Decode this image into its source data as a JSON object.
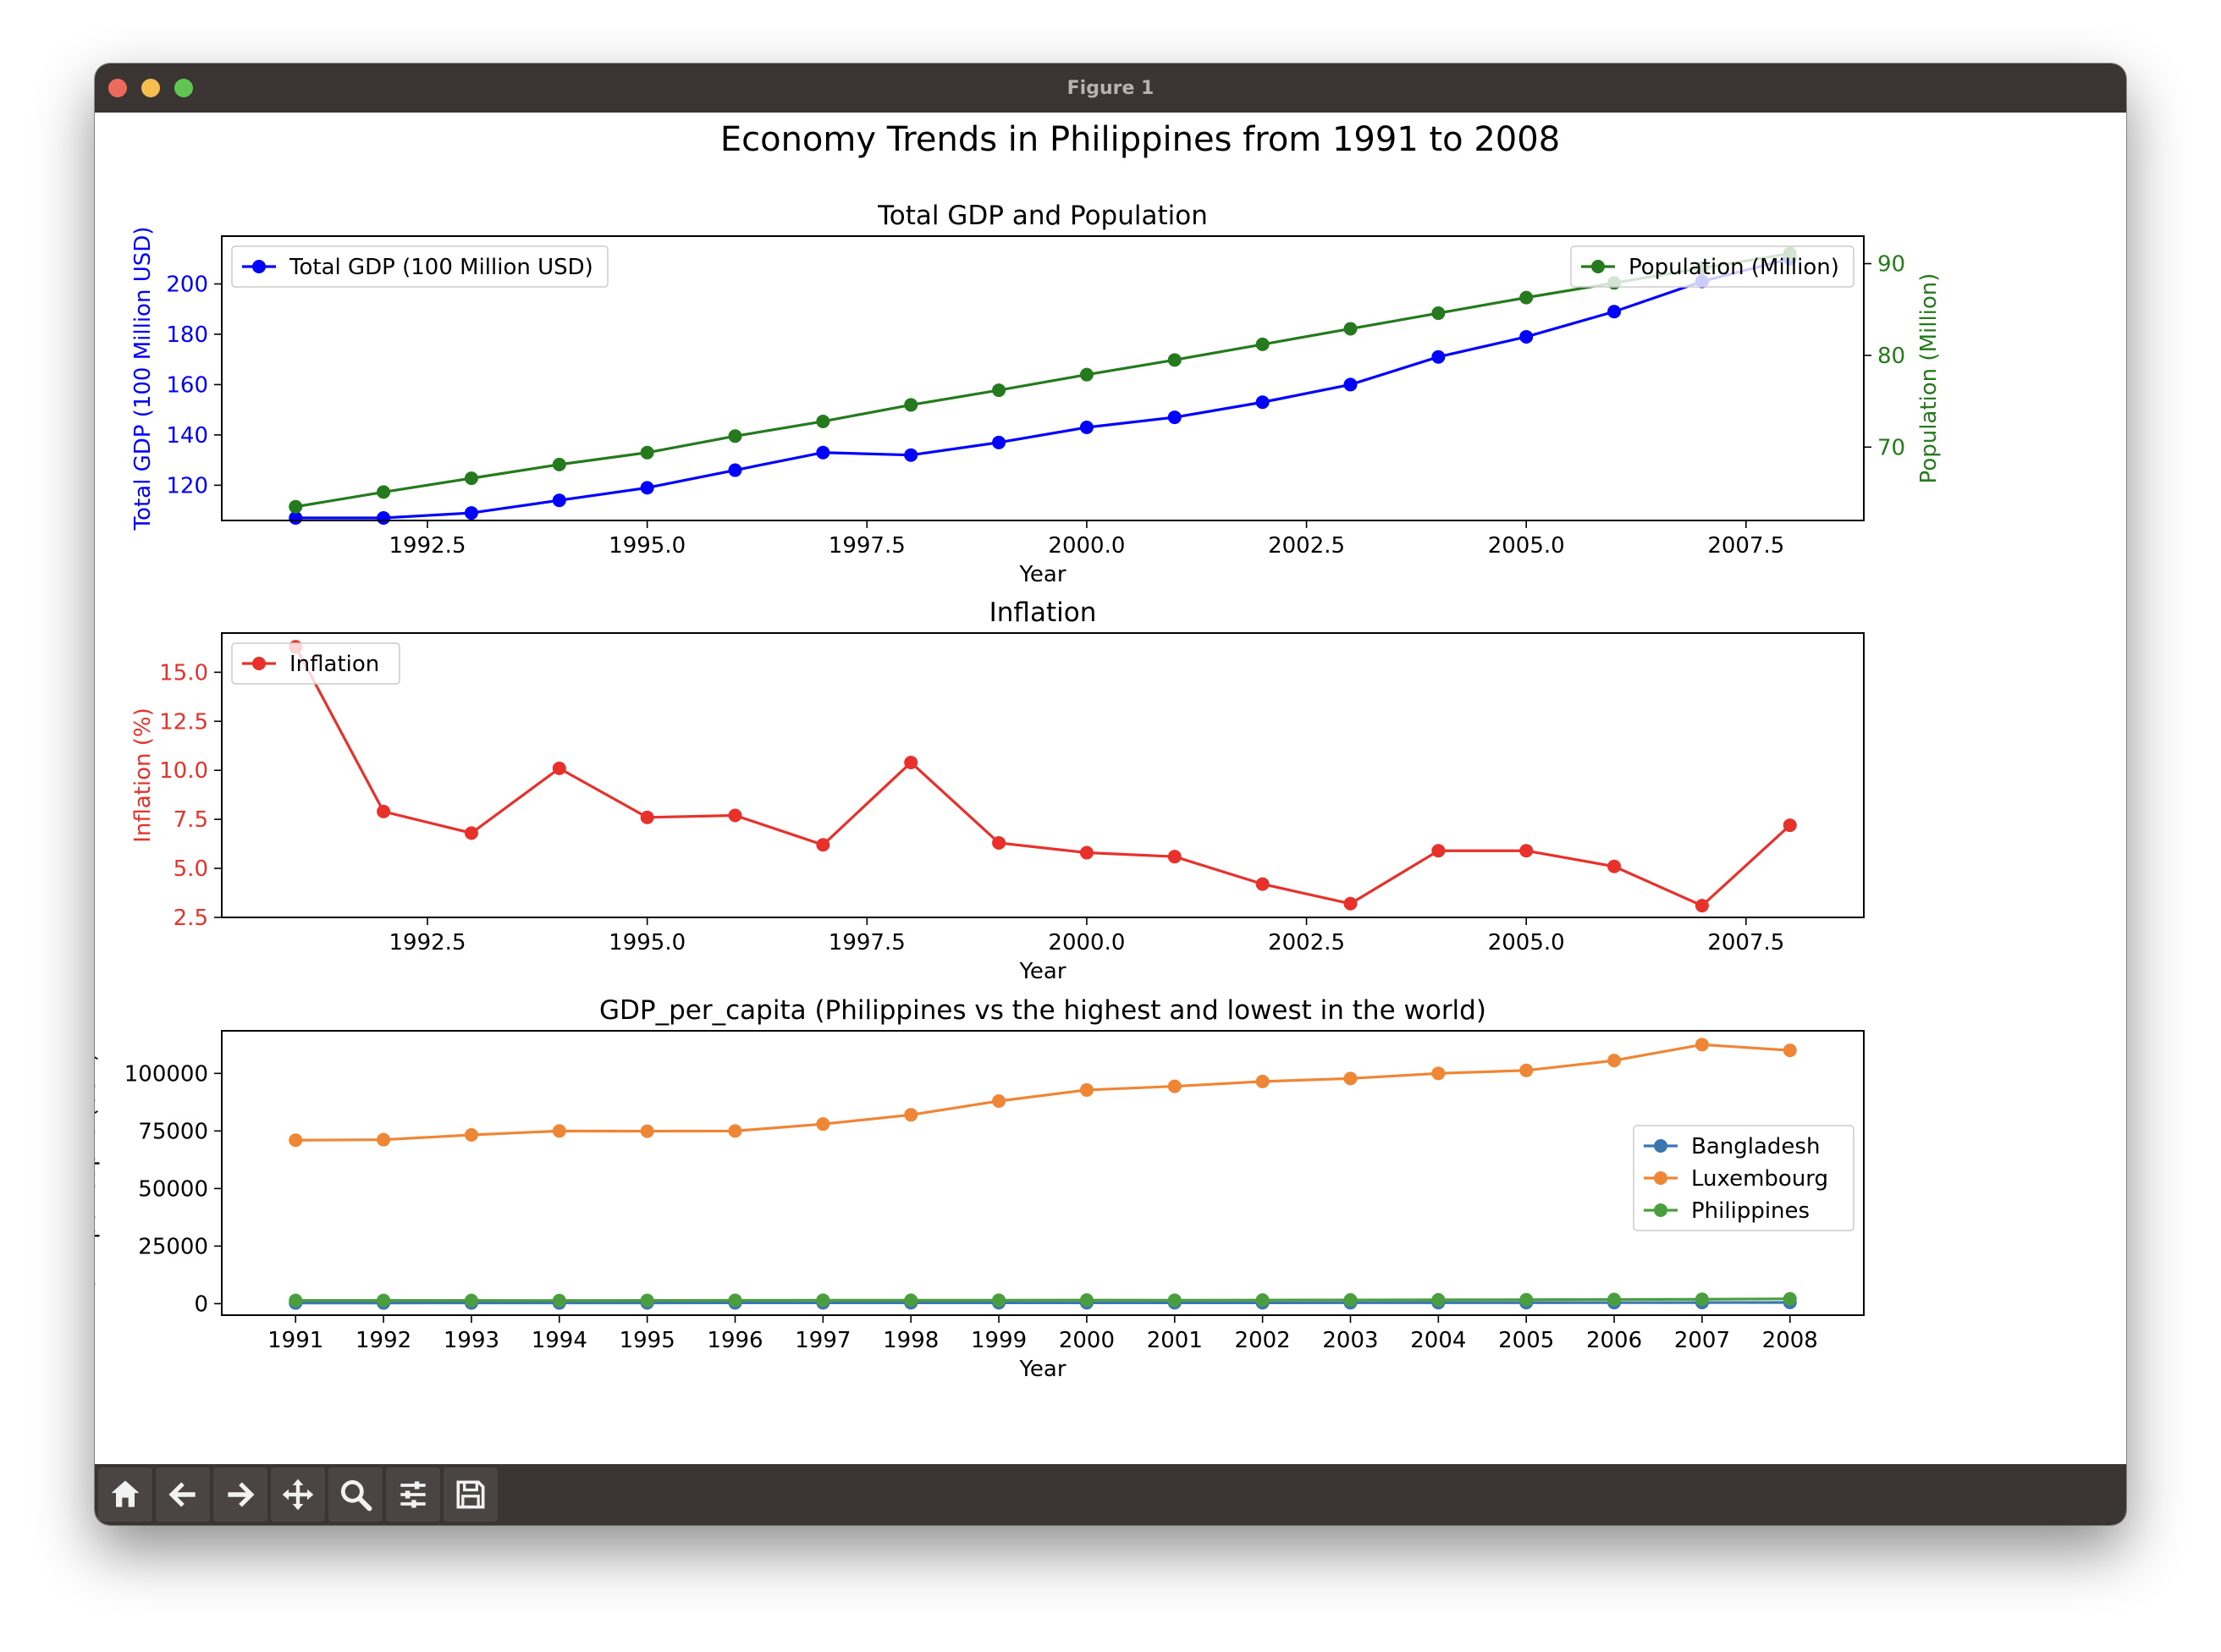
{
  "window": {
    "title": "Figure 1"
  },
  "figure_title": "Economy Trends in Philippines from 1991 to 2008",
  "toolbar": {
    "buttons": [
      "home-icon",
      "back-arrow-icon",
      "forward-arrow-icon",
      "pan-icon",
      "zoom-icon",
      "configure-subplots-icon",
      "save-icon"
    ]
  },
  "colors": {
    "gdp": "#0000ff",
    "population": "#267a1e",
    "inflation": "#e8312a",
    "bangladesh": "#3a76af",
    "luxembourg": "#ef8636",
    "philippines": "#4b9e3e",
    "chrome": "#3a3433"
  },
  "chart_data": [
    {
      "type": "line",
      "title": "Total GDP and Population",
      "xlabel": "Year",
      "ylabel": "Total GDP (100 Million USD)",
      "y2label": "Population (Million)",
      "x": [
        1991,
        1992,
        1993,
        1994,
        1995,
        1996,
        1997,
        1998,
        1999,
        2000,
        2001,
        2002,
        2003,
        2004,
        2005,
        2006,
        2007,
        2008
      ],
      "xlim": [
        1990.16,
        2008.84
      ],
      "xticks": [
        "1992.5",
        "1995.0",
        "1997.5",
        "2000.0",
        "2002.5",
        "2005.0",
        "2007.5"
      ],
      "ylim": [
        106,
        219
      ],
      "yticks": [
        "120",
        "140",
        "160",
        "180",
        "200"
      ],
      "y2lim": [
        62,
        93
      ],
      "y2ticks": [
        "70",
        "80",
        "90"
      ],
      "series": [
        {
          "name": "Total GDP (100 Million USD)",
          "axis": "left",
          "color": "#0000ff",
          "values": [
            107,
            107,
            109,
            114,
            119,
            126,
            133,
            132,
            137,
            143,
            147,
            153,
            160,
            171,
            179,
            189,
            201,
            210
          ]
        },
        {
          "name": "Population (Million)",
          "axis": "right",
          "color": "#267a1e",
          "values": [
            63.5,
            65.1,
            66.6,
            68.1,
            69.4,
            71.2,
            72.8,
            74.6,
            76.2,
            77.9,
            79.5,
            81.2,
            82.9,
            84.6,
            86.3,
            87.9,
            89.5,
            91.1
          ]
        }
      ],
      "legends": [
        {
          "label": "Total GDP (100 Million USD)",
          "placement": "upper left"
        },
        {
          "label": "Population (Million)",
          "placement": "upper right"
        }
      ]
    },
    {
      "type": "line",
      "title": "Inflation",
      "xlabel": "Year",
      "ylabel": "Inflation (%)",
      "x": [
        1991,
        1992,
        1993,
        1994,
        1995,
        1996,
        1997,
        1998,
        1999,
        2000,
        2001,
        2002,
        2003,
        2004,
        2005,
        2006,
        2007,
        2008
      ],
      "xlim": [
        1990.16,
        2008.84
      ],
      "xticks": [
        "1992.5",
        "1995.0",
        "1997.5",
        "2000.0",
        "2002.5",
        "2005.0",
        "2007.5"
      ],
      "ylim": [
        2.5,
        17.0
      ],
      "yticks": [
        "2.5",
        "5.0",
        "7.5",
        "10.0",
        "12.5",
        "15.0"
      ],
      "series": [
        {
          "name": "Inflation",
          "color": "#e8312a",
          "values": [
            16.3,
            7.9,
            6.8,
            10.1,
            7.6,
            7.7,
            6.2,
            10.4,
            6.3,
            5.8,
            5.6,
            4.2,
            3.2,
            5.9,
            5.9,
            5.1,
            3.1,
            7.2
          ]
        }
      ],
      "legend": {
        "placement": "upper left"
      }
    },
    {
      "type": "line",
      "title": "GDP_per_capita (Philippines vs the highest and lowest in the world)",
      "xlabel": "Year",
      "ylabel": "GDP per Capita (USD)",
      "categories": [
        "1991",
        "1992",
        "1993",
        "1994",
        "1995",
        "1996",
        "1997",
        "1998",
        "1999",
        "2000",
        "2001",
        "2002",
        "2003",
        "2004",
        "2005",
        "2006",
        "2007",
        "2008"
      ],
      "ylim": [
        -5000,
        118500
      ],
      "yticks": [
        "0",
        "25000",
        "50000",
        "75000",
        "100000"
      ],
      "series": [
        {
          "name": "Bangladesh",
          "color": "#3a76af",
          "values": [
            290,
            295,
            300,
            305,
            330,
            345,
            355,
            365,
            370,
            380,
            375,
            380,
            400,
            420,
            430,
            445,
            475,
            520
          ]
        },
        {
          "name": "Luxembourg",
          "color": "#ef8636",
          "values": [
            71000,
            71200,
            73300,
            75000,
            74900,
            75000,
            78000,
            82000,
            88000,
            92800,
            94400,
            96500,
            97800,
            100000,
            101300,
            105600,
            112500,
            110000
          ]
        },
        {
          "name": "Philippines",
          "color": "#4b9e3e",
          "values": [
            1400,
            1400,
            1380,
            1350,
            1400,
            1450,
            1500,
            1470,
            1500,
            1550,
            1500,
            1550,
            1600,
            1650,
            1700,
            1800,
            1900,
            2100
          ]
        }
      ],
      "legend": {
        "placement": "center right"
      }
    }
  ]
}
